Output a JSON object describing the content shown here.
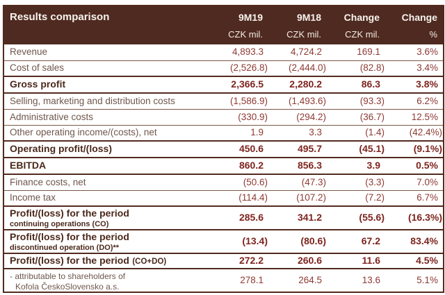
{
  "table": {
    "title": "Results comparison",
    "columns": [
      {
        "label": "9M19",
        "unit": "CZK mil."
      },
      {
        "label": "9M18",
        "unit": "CZK mil."
      },
      {
        "label": "Change",
        "unit": "CZK mil."
      },
      {
        "label": "Change",
        "unit": "%"
      }
    ],
    "rows": [
      {
        "style": "regular",
        "label": "Revenue",
        "values": [
          "4,893.3",
          "4,724.2",
          "169.1",
          "3.6%"
        ]
      },
      {
        "style": "regular",
        "label": "Cost of sales",
        "values": [
          "(2,526.8)",
          "(2,444.0)",
          "(82.8)",
          "3.4%"
        ]
      },
      {
        "style": "bold",
        "label": "Gross profit",
        "values": [
          "2,366.5",
          "2,280.2",
          "86.3",
          "3.8%"
        ]
      },
      {
        "style": "regular",
        "label": "Selling, marketing and distribution costs",
        "values": [
          "(1,586.9)",
          "(1,493.6)",
          "(93.3)",
          "6.2%"
        ]
      },
      {
        "style": "regular",
        "label": "Administrative costs",
        "values": [
          "(330.9)",
          "(294.2)",
          "(36.7)",
          "12.5%"
        ]
      },
      {
        "style": "regular",
        "label": "Other operating income/(costs), net",
        "values": [
          "1.9",
          "3.3",
          "(1.4)",
          "(42.4%)"
        ]
      },
      {
        "style": "bold",
        "label": "Operating profit/(loss)",
        "values": [
          "450.6",
          "495.7",
          "(45.1)",
          "(9.1%)"
        ]
      },
      {
        "style": "bold",
        "label": "EBITDA",
        "values": [
          "860.2",
          "856.3",
          "3.9",
          "0.5%"
        ]
      },
      {
        "style": "regular",
        "label": "Finance costs, net",
        "values": [
          "(50.6)",
          "(47.3)",
          "(3.3)",
          "7.0%"
        ]
      },
      {
        "style": "regular",
        "label": "Income tax",
        "values": [
          "(114.4)",
          "(107.2)",
          "(7.2)",
          "6.7%"
        ]
      },
      {
        "style": "bold2",
        "label": "Profit/(loss) for the period",
        "sublabel": "continuing operations (CO)",
        "values": [
          "285.6",
          "341.2",
          "(55.6)",
          "(16.3%)"
        ]
      },
      {
        "style": "bold2",
        "label": "Profit/(loss) for the period",
        "sublabel": "discontinued operation (DO)**",
        "values": [
          "(13.4)",
          "(80.6)",
          "67.2",
          "83.4%"
        ]
      },
      {
        "style": "boldc",
        "label": "Profit/(loss) for the period",
        "label_suffix": "(CO+DO)",
        "values": [
          "272.2",
          "260.6",
          "11.6",
          "4.5%"
        ]
      },
      {
        "style": "note",
        "label": "- attributable to shareholders of",
        "sublabel": "Kofola ČeskoSlovensko a.s.",
        "values": [
          "278.1",
          "264.5",
          "13.6",
          "5.1%"
        ]
      }
    ]
  },
  "colors": {
    "header_bg": "#4f2a20",
    "header_text": "#f7f3ee",
    "border_thick": "#532a1e",
    "border_thin": "#7b564a",
    "label_text": "#6e564c",
    "label_text_bold": "#4a281b",
    "number_text": "#8d3a33",
    "number_text_bold": "#7d241e"
  }
}
